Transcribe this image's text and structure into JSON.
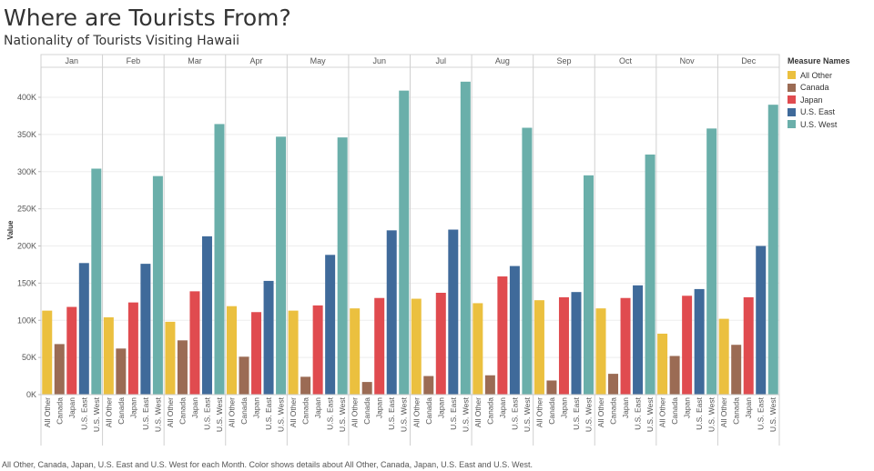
{
  "header": {
    "title": "Where are Tourists From?",
    "subtitle": "Nationality of Tourists Visiting Hawaii"
  },
  "legend": {
    "title": "Measure Names",
    "items": [
      {
        "label": "All Other",
        "color": "#EBC03F"
      },
      {
        "label": "Canada",
        "color": "#9B6B54"
      },
      {
        "label": "Japan",
        "color": "#E04B4F"
      },
      {
        "label": "U.S. East",
        "color": "#3F6A9A"
      },
      {
        "label": "U.S. West",
        "color": "#6AAFAA"
      }
    ]
  },
  "caption": "All Other, Canada, Japan, U.S. East and U.S. West for each Month.  Color shows details about All Other, Canada, Japan, U.S. East and U.S. West.",
  "chart_data": {
    "type": "bar",
    "ylabel": "Value",
    "ylim": [
      0,
      425000
    ],
    "yticks": [
      0,
      50000,
      100000,
      150000,
      200000,
      250000,
      300000,
      350000,
      400000
    ],
    "ytick_labels": [
      "0K",
      "50K",
      "100K",
      "150K",
      "200K",
      "250K",
      "300K",
      "350K",
      "400K"
    ],
    "categories": [
      "All Other",
      "Canada",
      "Japan",
      "U.S. East",
      "U.S. West"
    ],
    "colors": [
      "#EBC03F",
      "#9B6B54",
      "#E04B4F",
      "#3F6A9A",
      "#6AAFAA"
    ],
    "months": [
      {
        "name": "Jan",
        "values": [
          113000,
          68000,
          118000,
          177000,
          304000
        ]
      },
      {
        "name": "Feb",
        "values": [
          104000,
          62000,
          124000,
          176000,
          294000
        ]
      },
      {
        "name": "Mar",
        "values": [
          98000,
          73000,
          139000,
          213000,
          364000
        ]
      },
      {
        "name": "Apr",
        "values": [
          119000,
          51000,
          111000,
          153000,
          347000
        ]
      },
      {
        "name": "May",
        "values": [
          113000,
          24000,
          120000,
          188000,
          346000
        ]
      },
      {
        "name": "Jun",
        "values": [
          116000,
          17000,
          130000,
          221000,
          409000
        ]
      },
      {
        "name": "Jul",
        "values": [
          129000,
          25000,
          137000,
          222000,
          421000
        ]
      },
      {
        "name": "Aug",
        "values": [
          123000,
          26000,
          159000,
          173000,
          359000
        ]
      },
      {
        "name": "Sep",
        "values": [
          127000,
          19000,
          131000,
          138000,
          295000
        ]
      },
      {
        "name": "Oct",
        "values": [
          116000,
          28000,
          130000,
          147000,
          323000
        ]
      },
      {
        "name": "Nov",
        "values": [
          82000,
          52000,
          133000,
          142000,
          358000
        ]
      },
      {
        "name": "Dec",
        "values": [
          102000,
          67000,
          131000,
          200000,
          390000
        ]
      }
    ]
  }
}
